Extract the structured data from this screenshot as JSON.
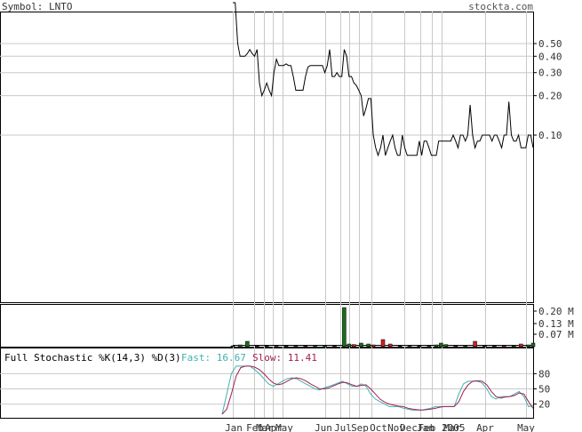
{
  "header": {
    "symbol_label": "Symbol: LNTO",
    "site": "stockta.com"
  },
  "colors": {
    "price_line": "#000000",
    "grid": "#c8c8c8",
    "volume_up": "#1a6b1a",
    "volume_down": "#cc2222",
    "fast_line": "#40b0b0",
    "slow_line": "#a02050"
  },
  "chart_data": [
    {
      "type": "line",
      "name": "price",
      "scale": "log",
      "y_ticks": [
        0.5,
        0.4,
        0.3,
        0.2,
        0.1
      ],
      "y_tick_labels": [
        "0.50",
        "0.40",
        "0.30",
        "0.20",
        "0.10"
      ],
      "x_tick_labels": [
        "Jan",
        "Feb",
        "Mar",
        "Apr",
        "May",
        "Jun",
        "Jul",
        "Sep",
        "Oct",
        "Nov",
        "Dec",
        "Jan",
        "Feb 2005",
        "Mar",
        "Apr",
        "May"
      ],
      "y": [
        3.0,
        1.4,
        0.5,
        0.4,
        0.4,
        0.4,
        0.42,
        0.45,
        0.42,
        0.4,
        0.45,
        0.25,
        0.2,
        0.22,
        0.25,
        0.22,
        0.2,
        0.3,
        0.38,
        0.34,
        0.34,
        0.34,
        0.35,
        0.34,
        0.34,
        0.28,
        0.22,
        0.22,
        0.22,
        0.22,
        0.28,
        0.33,
        0.34,
        0.34,
        0.34,
        0.34,
        0.34,
        0.34,
        0.3,
        0.34,
        0.45,
        0.28,
        0.28,
        0.3,
        0.28,
        0.28,
        0.45,
        0.4,
        0.28,
        0.28,
        0.25,
        0.24,
        0.22,
        0.2,
        0.14,
        0.16,
        0.19,
        0.19,
        0.1,
        0.08,
        0.07,
        0.08,
        0.1,
        0.07,
        0.08,
        0.09,
        0.1,
        0.08,
        0.07,
        0.07,
        0.1,
        0.08,
        0.07,
        0.07,
        0.07,
        0.07,
        0.07,
        0.09,
        0.07,
        0.09,
        0.09,
        0.08,
        0.07,
        0.07,
        0.07,
        0.09,
        0.09,
        0.09,
        0.09,
        0.09,
        0.09,
        0.1,
        0.09,
        0.08,
        0.1,
        0.1,
        0.09,
        0.1,
        0.17,
        0.1,
        0.08,
        0.09,
        0.09,
        0.1,
        0.1,
        0.1,
        0.1,
        0.09,
        0.1,
        0.1,
        0.09,
        0.08,
        0.1,
        0.1,
        0.18,
        0.1,
        0.09,
        0.09,
        0.1,
        0.08,
        0.08,
        0.08,
        0.1,
        0.1,
        0.08
      ]
    },
    {
      "type": "bar",
      "name": "volume",
      "unit": "M",
      "y_tick_labels": [
        "0.20 M",
        "0.13 M",
        "0.07 M"
      ],
      "y_ticks": [
        0.2,
        0.13,
        0.07
      ],
      "ylim": [
        0,
        0.24
      ],
      "bars": [
        {
          "i": 0,
          "v": 0.005,
          "up": true
        },
        {
          "i": 3,
          "v": 0.01,
          "up": true
        },
        {
          "i": 6,
          "v": 0.03,
          "up": true
        },
        {
          "i": 10,
          "v": 0.004,
          "up": false
        },
        {
          "i": 14,
          "v": 0.005,
          "up": true
        },
        {
          "i": 18,
          "v": 0.003,
          "up": false
        },
        {
          "i": 22,
          "v": 0.004,
          "up": true
        },
        {
          "i": 26,
          "v": 0.003,
          "up": true
        },
        {
          "i": 30,
          "v": 0.004,
          "up": false
        },
        {
          "i": 34,
          "v": 0.003,
          "up": true
        },
        {
          "i": 38,
          "v": 0.003,
          "up": true
        },
        {
          "i": 42,
          "v": 0.005,
          "up": false
        },
        {
          "i": 46,
          "v": 0.22,
          "up": true
        },
        {
          "i": 48,
          "v": 0.015,
          "up": true
        },
        {
          "i": 50,
          "v": 0.012,
          "up": false
        },
        {
          "i": 53,
          "v": 0.02,
          "up": true
        },
        {
          "i": 56,
          "v": 0.015,
          "up": true
        },
        {
          "i": 58,
          "v": 0.01,
          "up": false
        },
        {
          "i": 62,
          "v": 0.04,
          "up": false
        },
        {
          "i": 65,
          "v": 0.015,
          "up": false
        },
        {
          "i": 69,
          "v": 0.004,
          "up": true
        },
        {
          "i": 73,
          "v": 0.003,
          "up": false
        },
        {
          "i": 77,
          "v": 0.004,
          "up": true
        },
        {
          "i": 81,
          "v": 0.003,
          "up": true
        },
        {
          "i": 84,
          "v": 0.01,
          "up": true
        },
        {
          "i": 86,
          "v": 0.02,
          "up": true
        },
        {
          "i": 88,
          "v": 0.012,
          "up": true
        },
        {
          "i": 92,
          "v": 0.005,
          "up": false
        },
        {
          "i": 96,
          "v": 0.007,
          "up": true
        },
        {
          "i": 100,
          "v": 0.03,
          "up": false
        },
        {
          "i": 104,
          "v": 0.004,
          "up": true
        },
        {
          "i": 108,
          "v": 0.004,
          "up": true
        },
        {
          "i": 112,
          "v": 0.006,
          "up": false
        },
        {
          "i": 116,
          "v": 0.006,
          "up": true
        },
        {
          "i": 119,
          "v": 0.015,
          "up": false
        },
        {
          "i": 122,
          "v": 0.01,
          "up": true
        },
        {
          "i": 124,
          "v": 0.02,
          "up": true
        }
      ]
    },
    {
      "type": "line",
      "name": "full-stochastic",
      "title": "Full Stochastic %K(14,3) %D(3)",
      "fast_label": "Fast: 16.67",
      "slow_label": "Slow: 11.41",
      "y_ticks": [
        80,
        50,
        20
      ],
      "y_tick_labels": [
        "80",
        "50",
        "20"
      ],
      "ylim": [
        0,
        100
      ],
      "fast": [
        0,
        40,
        80,
        95,
        95,
        95,
        95,
        88,
        80,
        70,
        60,
        55,
        60,
        65,
        70,
        72,
        70,
        65,
        60,
        55,
        50,
        48,
        52,
        55,
        58,
        62,
        65,
        60,
        55,
        55,
        60,
        55,
        40,
        30,
        25,
        20,
        15,
        15,
        15,
        12,
        10,
        8,
        8,
        8,
        10,
        12,
        15,
        15,
        15,
        15,
        15,
        40,
        60,
        65,
        65,
        65,
        62,
        50,
        35,
        30,
        35,
        35,
        35,
        40,
        45,
        35,
        15,
        16.67
      ],
      "slow": [
        0,
        10,
        40,
        75,
        92,
        95,
        95,
        93,
        88,
        80,
        70,
        62,
        58,
        60,
        65,
        70,
        72,
        70,
        66,
        60,
        55,
        50,
        50,
        52,
        56,
        60,
        63,
        62,
        58,
        55,
        57,
        58,
        50,
        40,
        30,
        24,
        20,
        18,
        16,
        15,
        12,
        10,
        9,
        8,
        9,
        10,
        12,
        14,
        15,
        15,
        15,
        25,
        45,
        58,
        65,
        66,
        65,
        58,
        45,
        35,
        32,
        34,
        35,
        37,
        42,
        40,
        25,
        11.41
      ]
    }
  ]
}
